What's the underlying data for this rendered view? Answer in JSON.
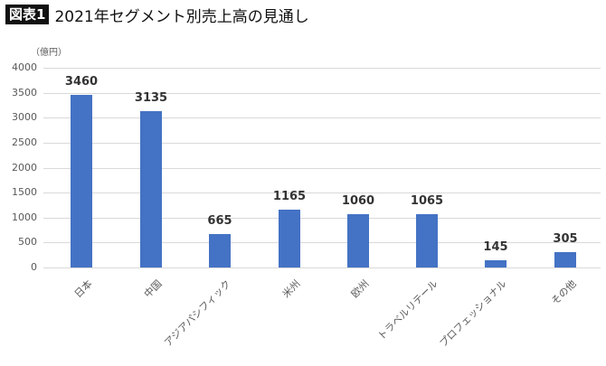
{
  "header": {
    "badge": "図表1",
    "title": "2021年セグメント別売上高の見通し"
  },
  "chart_data": {
    "type": "bar",
    "title": "2021年セグメント別売上高の見通し",
    "xlabel": "",
    "ylabel": "（億円）",
    "ylim": [
      0,
      4000
    ],
    "yticks": [
      "0",
      "500",
      "1000",
      "1500",
      "2000",
      "2500",
      "3000",
      "3500",
      "4000"
    ],
    "grid": true,
    "legend": "none",
    "categories": [
      "日本",
      "中国",
      "アジアパシフィック",
      "米州",
      "欧州",
      "トラベルリテール",
      "プロフェッショナル",
      "その他"
    ],
    "values": [
      3460,
      3135,
      665,
      1165,
      1060,
      1065,
      145,
      305
    ],
    "value_labels": [
      "3460",
      "3135",
      "665",
      "1165",
      "1060",
      "1065",
      "145",
      "305"
    ],
    "bar_color": "#4472c4"
  }
}
